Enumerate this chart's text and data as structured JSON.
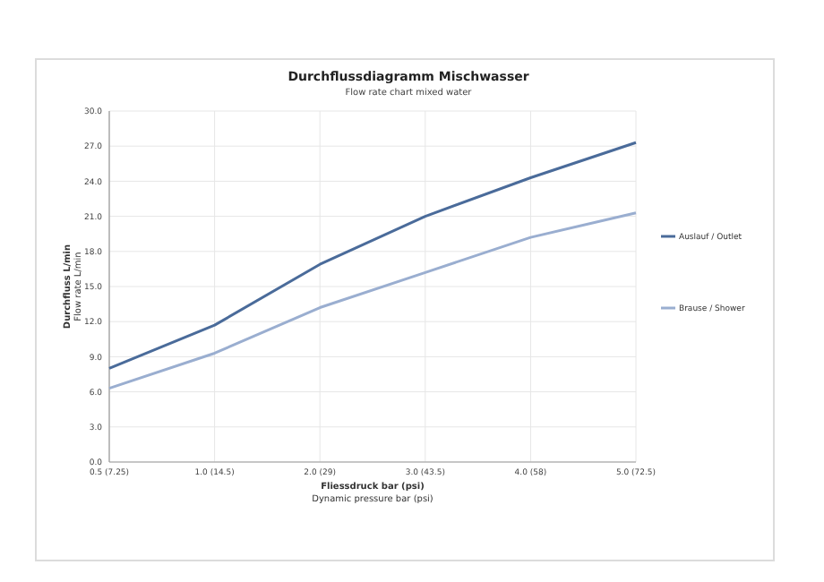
{
  "chart_data": {
    "type": "line",
    "title": "Durchflussdiagramm Mischwasser",
    "subtitle": "Flow rate chart mixed water",
    "xlabel": "Fliessdruck bar (psi)\nDynamic pressure bar (psi)",
    "ylabel": "Durchfluss L/min\nFlow rate L/min",
    "categories": [
      "0.5 (7.25)",
      "1.0 (14.5)",
      "2.0 (29)",
      "3.0 (43.5)",
      "4.0 (58)",
      "5.0 (72.5)"
    ],
    "series": [
      {
        "name": "Auslauf / Outlet",
        "color": "#4a6b9a",
        "values": [
          8.0,
          11.7,
          16.9,
          21.0,
          24.3,
          27.3
        ]
      },
      {
        "name": "Brause / Shower",
        "color": "#9aaed0",
        "values": [
          6.3,
          9.3,
          13.2,
          16.2,
          19.2,
          21.3
        ]
      }
    ],
    "ylim": [
      0,
      30
    ],
    "yticks": [
      {
        "value": 0,
        "label": "0.0"
      },
      {
        "value": 3,
        "label": "3.0"
      },
      {
        "value": 6,
        "label": "6.0"
      },
      {
        "value": 9,
        "label": "9.0"
      },
      {
        "value": 12,
        "label": "12.0"
      },
      {
        "value": 15,
        "label": "15.0"
      },
      {
        "value": 18,
        "label": "18.0"
      },
      {
        "value": 21,
        "label": "21.0"
      },
      {
        "value": 24,
        "label": "24.0"
      },
      {
        "value": 27,
        "label": "27.0"
      },
      {
        "value": 30,
        "label": "30.0"
      }
    ],
    "grid": true,
    "legend": "right",
    "marker": "none",
    "line_style": "solid"
  }
}
